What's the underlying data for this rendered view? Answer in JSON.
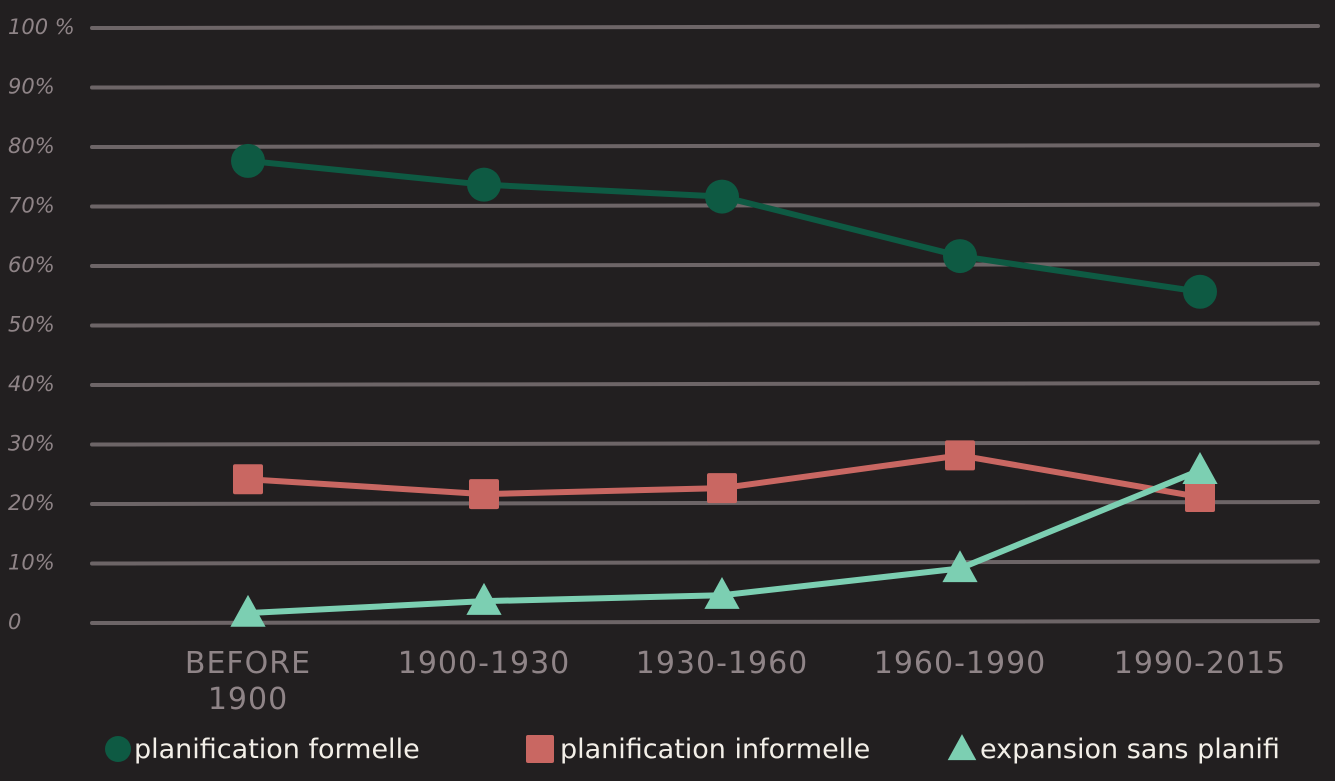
{
  "colors": {
    "background": "#221f20",
    "grid": "#756d6f",
    "tick_text": "#8f8487",
    "legend_text": "#f3efe8"
  },
  "chart_data": {
    "type": "line",
    "categories": [
      "BEFORE\n1900",
      "1900-1930",
      "1930-1960",
      "1960-1990",
      "1990-2015"
    ],
    "y_ticks": [
      "0",
      "10%",
      "20%",
      "30%",
      "40%",
      "50%",
      "60%",
      "70%",
      "80%",
      "90%",
      "100 %"
    ],
    "ylim": [
      0,
      100
    ],
    "grid": true,
    "legend_position": "bottom",
    "series": [
      {
        "name": "planification formelle",
        "color": "#0e5a43",
        "marker": "circle",
        "values": [
          77.5,
          73.5,
          71.5,
          61.5,
          55.5
        ]
      },
      {
        "name": "planification informelle",
        "color": "#c96762",
        "marker": "square",
        "values": [
          24,
          21.5,
          22.5,
          28,
          21
        ]
      },
      {
        "name": "expansion sans planifi",
        "color": "#7ccfb2",
        "marker": "triangle",
        "values": [
          1.5,
          3.5,
          4.5,
          9,
          25.5
        ]
      }
    ]
  }
}
